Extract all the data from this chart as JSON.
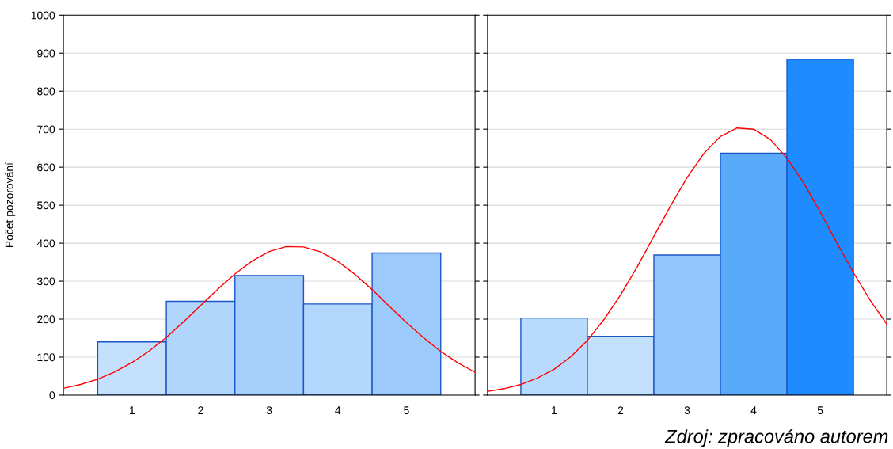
{
  "chart_data": [
    {
      "type": "histogram",
      "ylabel": "Počet pozorování",
      "bins": [
        0.5,
        1.5,
        2.5,
        3.5,
        4.5,
        5.5
      ],
      "values": [
        140,
        247,
        315,
        240,
        374
      ],
      "colors": [
        "#c4e0fc",
        "#b0d6fc",
        "#a6d0fb",
        "#b1d7fc",
        "#9ccbfb"
      ],
      "series": [
        {
          "type": "line",
          "color": "#ff0000",
          "x": [
            0,
            0.25,
            0.5,
            0.75,
            1,
            1.25,
            1.5,
            1.75,
            2,
            2.25,
            2.5,
            2.75,
            3,
            3.25,
            3.5,
            3.75,
            4,
            4.25,
            4.5,
            4.75,
            5,
            5.25,
            5.5,
            5.75,
            6
          ],
          "values": [
            18,
            28,
            42,
            61,
            86,
            116,
            152,
            193,
            236,
            279,
            319,
            353,
            378,
            391,
            390,
            377,
            352,
            318,
            278,
            234,
            191,
            151,
            115,
            85,
            60
          ]
        }
      ],
      "xlim": [
        0,
        6
      ],
      "xticks": [
        1,
        2,
        3,
        4,
        5
      ],
      "ylim": [
        0,
        1000
      ],
      "yticks": [
        0,
        100,
        200,
        300,
        400,
        500,
        600,
        700,
        800,
        900,
        1000
      ],
      "grid": "y"
    },
    {
      "type": "histogram",
      "bins": [
        0.5,
        1.5,
        2.5,
        3.5,
        4.5,
        5.5
      ],
      "values": [
        203,
        155,
        369,
        637,
        884
      ],
      "colors": [
        "#b8dafc",
        "#c2e0fc",
        "#94c8fc",
        "#5aaafc",
        "#1e8cff"
      ],
      "series": [
        {
          "type": "line",
          "color": "#ff0000",
          "x": [
            0,
            0.25,
            0.5,
            0.75,
            1,
            1.25,
            1.5,
            1.75,
            2,
            2.25,
            2.5,
            2.75,
            3,
            3.25,
            3.5,
            3.75,
            4,
            4.25,
            4.5,
            4.75,
            5,
            5.25,
            5.5,
            5.75,
            6
          ],
          "values": [
            10,
            17,
            28,
            45,
            68,
            101,
            144,
            199,
            264,
            338,
            418,
            498,
            573,
            636,
            681,
            703,
            700,
            673,
            624,
            559,
            482,
            401,
            322,
            250,
            187
          ]
        }
      ],
      "xlim": [
        0,
        6
      ],
      "xticks": [
        1,
        2,
        3,
        4,
        5
      ],
      "ylim": [
        0,
        1000
      ],
      "yticks": [
        0,
        100,
        200,
        300,
        400,
        500,
        600,
        700,
        800,
        900,
        1000
      ],
      "grid": "y",
      "tick_labels": "x",
      "annotations": [
        "Zdroj: zpracováno autorem"
      ]
    }
  ]
}
